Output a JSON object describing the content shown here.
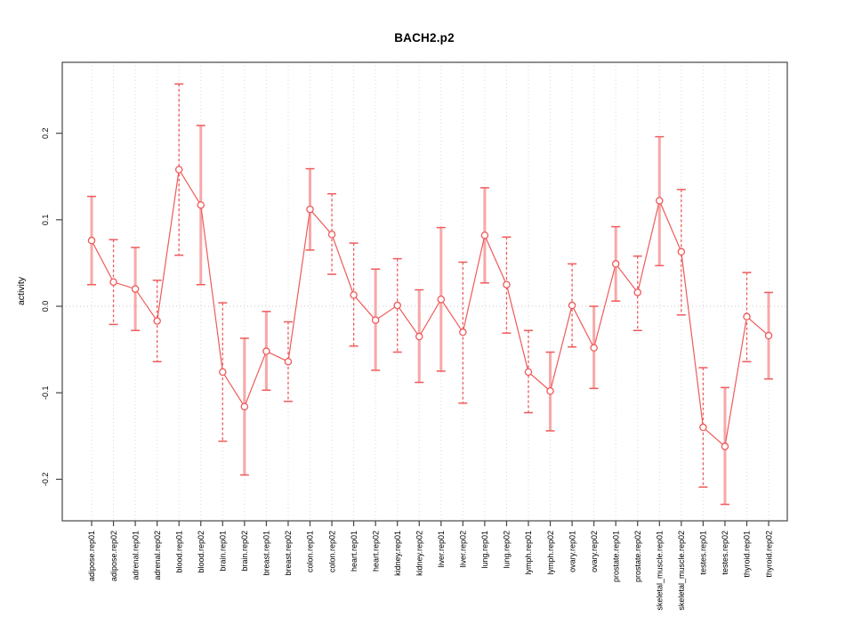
{
  "figure": {
    "background": "#ffffff"
  },
  "chart_data": {
    "type": "line",
    "subtype": "points-with-error-bars",
    "title": "BACH2.p2",
    "xlabel": "",
    "ylabel": "activity",
    "ylim": [
      -0.248,
      0.282
    ],
    "ytick_values": [
      0.2,
      0.1,
      0.0,
      -0.1,
      -0.2
    ],
    "ytick_labels": [
      "0.2",
      "0.1",
      "0.0",
      "-0.1",
      "-0.2"
    ],
    "zero_line_at": 0.0,
    "grid": "dotted vertical gridline at every category; dotted horizontal line at y=0 only",
    "legend": "none",
    "marker": "open-circle",
    "categories": [
      "adipose.rep01",
      "adipose.rep02",
      "adrenal.rep01",
      "adrenal.rep02",
      "blood.rep01",
      "blood.rep02",
      "brain.rep01",
      "brain.rep02",
      "breast.rep01",
      "breast.rep02",
      "colon.rep01",
      "colon.rep02",
      "heart.rep01",
      "heart.rep02",
      "kidney.rep01",
      "kidney.rep02",
      "liver.rep01",
      "liver.rep02",
      "lung.rep01",
      "lung.rep02",
      "lymph.rep01",
      "lymph.rep02",
      "ovary.rep01",
      "ovary.rep02",
      "prostate.rep01",
      "prostate.rep02",
      "skeletal_muscle.rep01",
      "skeletal_muscle.rep02",
      "testes.rep01",
      "testes.rep02",
      "thyroid.rep01",
      "thyroid.rep02"
    ],
    "series": [
      {
        "name": "BACH2.p2 activity",
        "values": [
          0.076,
          0.028,
          0.02,
          -0.017,
          0.158,
          0.117,
          -0.076,
          -0.116,
          -0.052,
          -0.064,
          0.112,
          0.083,
          0.013,
          -0.016,
          0.001,
          -0.035,
          0.008,
          -0.03,
          0.082,
          0.025,
          -0.076,
          -0.098,
          0.001,
          -0.048,
          0.049,
          0.016,
          0.122,
          0.063,
          -0.14,
          -0.162,
          -0.012,
          -0.034
        ],
        "ci_low": [
          0.025,
          -0.021,
          -0.028,
          -0.064,
          0.059,
          0.025,
          -0.156,
          -0.195,
          -0.097,
          -0.11,
          0.065,
          0.037,
          -0.046,
          -0.074,
          -0.053,
          -0.088,
          -0.075,
          -0.112,
          0.027,
          -0.031,
          -0.123,
          -0.144,
          -0.047,
          -0.095,
          0.006,
          -0.028,
          0.047,
          -0.01,
          -0.209,
          -0.229,
          -0.064,
          -0.084
        ],
        "ci_high": [
          0.127,
          0.077,
          0.068,
          0.03,
          0.257,
          0.209,
          0.004,
          -0.037,
          -0.006,
          -0.018,
          0.159,
          0.13,
          0.073,
          0.043,
          0.055,
          0.019,
          0.091,
          0.051,
          0.137,
          0.08,
          -0.028,
          -0.053,
          0.049,
          0.0,
          0.092,
          0.058,
          0.196,
          0.135,
          -0.071,
          -0.094,
          0.039,
          0.016
        ],
        "error_bar_styles": [
          "solid",
          "dashed",
          "solid",
          "dashed",
          "dashed",
          "solid",
          "dashed",
          "solid",
          "solid",
          "dashed",
          "solid",
          "dashed",
          "dashed",
          "solid",
          "dashed",
          "solid",
          "solid",
          "dashed",
          "solid",
          "dashed",
          "dashed",
          "solid",
          "dashed",
          "solid",
          "solid",
          "dashed",
          "solid",
          "dashed",
          "dashed",
          "solid",
          "dashed",
          "solid"
        ]
      }
    ],
    "colors": {
      "series_red": "#EF5A5A",
      "solid_error_bar_pink": "#F7A8A8",
      "gridline": "#DBDBDB",
      "zero_line": "#C6C6C6",
      "axis_box": "#454545",
      "text": "#000000"
    }
  }
}
